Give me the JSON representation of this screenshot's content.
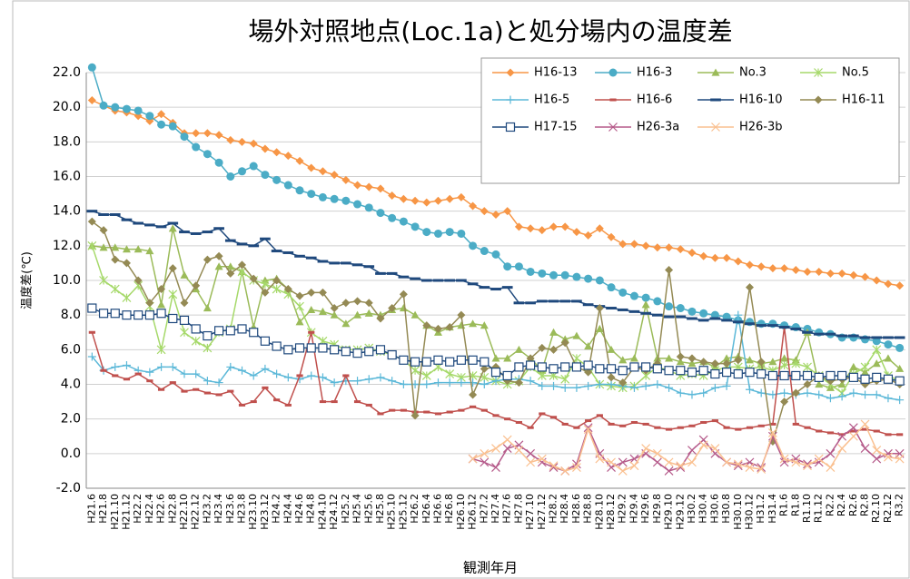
{
  "chart_data": {
    "type": "line",
    "title": "場外対照地点(Loc.1a)と処分場内の温度差",
    "y_label": "温度差(℃)",
    "x_label": "観測年月",
    "categories": [
      "H21.6",
      "H21.8",
      "H21.10",
      "H21.12",
      "H22.2",
      "H22.4",
      "H22.6",
      "H22.8",
      "H22.10",
      "H22.12",
      "H23.2",
      "H23.4",
      "H23.6",
      "H23.8",
      "H23.10",
      "H23.12",
      "H24.2",
      "H24.4",
      "H24.6",
      "H24.8",
      "H24.10",
      "H24.12",
      "H25.2",
      "H25.4",
      "H25.6",
      "H25.8",
      "H25.10",
      "H25.12",
      "H26.2",
      "H26.4",
      "H26.6",
      "H26.8",
      "H26.10",
      "H26.12",
      "H27.2",
      "H27.4",
      "H27.6",
      "H27.8",
      "H27.10",
      "H27.12",
      "H28.2",
      "H28.4",
      "H28.6",
      "H28.8",
      "H28.10",
      "H28.12",
      "H29.2",
      "H29.4",
      "H29.6",
      "H29.8",
      "H29.10",
      "H29.12",
      "H30.2",
      "H30.4",
      "H30.6",
      "H30.8",
      "H30.10",
      "H30.12",
      "H31.2",
      "H31.4",
      "R1.6",
      "R1.8",
      "R1.10",
      "R1.12",
      "R2.2",
      "R2.4",
      "R2.6",
      "R2.8",
      "R2.10",
      "R2.12",
      "R3.2"
    ],
    "ylim": [
      -2,
      22
    ],
    "yticks": [
      {
        "value": -2,
        "label": "-2.0"
      },
      {
        "value": 0,
        "label": "0.0"
      },
      {
        "value": 2,
        "label": "2.0"
      },
      {
        "value": 4,
        "label": "4.0"
      },
      {
        "value": 6,
        "label": "6.0"
      },
      {
        "value": 8,
        "label": "8.0"
      },
      {
        "value": 10,
        "label": "10.0"
      },
      {
        "value": 12,
        "label": "12.0"
      },
      {
        "value": 14,
        "label": "14.0"
      },
      {
        "value": 16,
        "label": "16.0"
      },
      {
        "value": 18,
        "label": "18.0"
      },
      {
        "value": 20,
        "label": "20.0"
      },
      {
        "value": 22,
        "label": "22.0"
      }
    ],
    "grid": true,
    "legend": "top-right",
    "series": [
      {
        "name": "H16-13",
        "color": "#f79646",
        "marker": "diamond",
        "values": [
          20.4,
          20.1,
          19.8,
          19.7,
          19.5,
          19.2,
          19.6,
          19.1,
          18.5,
          18.5,
          18.5,
          18.4,
          18.1,
          18.0,
          17.9,
          17.6,
          17.4,
          17.2,
          16.9,
          16.5,
          16.3,
          16.1,
          15.8,
          15.5,
          15.4,
          15.3,
          14.9,
          14.7,
          14.6,
          14.5,
          14.6,
          14.7,
          14.8,
          14.3,
          14.0,
          13.8,
          14.0,
          13.1,
          13.0,
          12.9,
          13.1,
          13.1,
          12.8,
          12.6,
          13.0,
          12.5,
          12.1,
          12.1,
          12.0,
          11.9,
          11.9,
          11.8,
          11.6,
          11.4,
          11.3,
          11.3,
          11.1,
          10.9,
          10.8,
          10.7,
          10.7,
          10.6,
          10.5,
          10.5,
          10.4,
          10.4,
          10.3,
          10.2,
          10.0,
          9.8,
          9.7
        ]
      },
      {
        "name": "H16-3",
        "color": "#4bacc6",
        "marker": "circle",
        "values": [
          22.3,
          20.1,
          20.0,
          19.9,
          19.8,
          19.5,
          19.0,
          18.9,
          18.3,
          17.7,
          17.3,
          16.8,
          16.0,
          16.3,
          16.6,
          16.1,
          15.8,
          15.5,
          15.2,
          15.0,
          14.8,
          14.7,
          14.6,
          14.4,
          14.2,
          13.9,
          13.6,
          13.4,
          13.1,
          12.8,
          12.7,
          12.8,
          12.7,
          12.0,
          11.7,
          11.5,
          10.8,
          10.8,
          10.5,
          10.4,
          10.3,
          10.3,
          10.2,
          10.1,
          10.0,
          9.6,
          9.3,
          9.1,
          9.0,
          8.8,
          8.5,
          8.4,
          8.2,
          8.1,
          8.0,
          7.9,
          7.7,
          7.6,
          7.5,
          7.5,
          7.4,
          7.3,
          7.2,
          7.0,
          6.9,
          6.7,
          6.7,
          6.6,
          6.5,
          6.3,
          6.1
        ]
      },
      {
        "name": "No.3",
        "color": "#9bbb59",
        "marker": "triangle",
        "values": [
          12.0,
          11.9,
          11.9,
          11.8,
          11.8,
          11.7,
          8.6,
          13.0,
          10.3,
          9.5,
          8.4,
          10.8,
          10.8,
          10.5,
          7.3,
          10.0,
          10.1,
          9.5,
          7.6,
          8.3,
          8.2,
          8.0,
          7.5,
          8.0,
          8.1,
          8.0,
          8.3,
          8.4,
          8.0,
          7.4,
          7.0,
          7.3,
          7.4,
          7.5,
          7.4,
          5.5,
          5.5,
          6.0,
          5.5,
          4.8,
          7.0,
          6.6,
          6.8,
          6.2,
          7.2,
          6.0,
          5.4,
          5.5,
          8.6,
          5.5,
          5.5,
          5.3,
          5.2,
          5.3,
          5.0,
          5.5,
          5.6,
          5.4,
          5.2,
          5.3,
          5.5,
          5.4,
          7.0,
          4.0,
          3.8,
          4.0,
          5.0,
          4.7,
          5.2,
          5.5,
          4.9
        ]
      },
      {
        "name": "No.5",
        "color": "#a6d96a",
        "marker": "star",
        "values": [
          12.0,
          10.0,
          9.5,
          9.0,
          9.7,
          8.5,
          6.0,
          9.2,
          7.0,
          6.5,
          6.1,
          7.0,
          7.2,
          10.5,
          10.0,
          9.8,
          9.5,
          9.2,
          8.5,
          7.0,
          6.5,
          6.3,
          6.0,
          6.0,
          6.1,
          5.9,
          5.7,
          5.4,
          4.8,
          4.5,
          5.0,
          4.6,
          4.4,
          4.5,
          4.4,
          4.2,
          4.0,
          4.2,
          5.0,
          4.5,
          4.5,
          4.3,
          5.5,
          5.0,
          4.0,
          3.9,
          3.8,
          3.9,
          4.5,
          5.0,
          4.8,
          4.5,
          4.6,
          4.5,
          4.8,
          5.0,
          5.0,
          4.9,
          5.0,
          4.8,
          5.1,
          5.2,
          5.0,
          4.5,
          4.0,
          3.5,
          4.6,
          5.0,
          6.0,
          4.5,
          4.2
        ]
      },
      {
        "name": "H16-5",
        "color": "#5bb8d8",
        "marker": "plus",
        "values": [
          5.6,
          4.8,
          5.0,
          5.1,
          4.8,
          4.7,
          5.0,
          5.0,
          4.6,
          4.6,
          4.2,
          4.1,
          5.0,
          4.8,
          4.5,
          4.9,
          4.6,
          4.4,
          4.3,
          4.5,
          4.4,
          4.1,
          4.2,
          4.2,
          4.3,
          4.4,
          4.2,
          4.0,
          4.0,
          4.0,
          4.1,
          4.1,
          4.1,
          4.1,
          4.0,
          4.2,
          4.3,
          4.3,
          4.2,
          3.9,
          3.9,
          3.8,
          3.8,
          3.9,
          4.0,
          4.0,
          3.9,
          3.8,
          3.9,
          4.0,
          3.8,
          3.5,
          3.4,
          3.5,
          3.8,
          3.9,
          8.0,
          3.7,
          3.5,
          3.4,
          3.5,
          3.4,
          3.5,
          3.4,
          3.2,
          3.3,
          3.5,
          3.4,
          3.4,
          3.2,
          3.1
        ]
      },
      {
        "name": "H16-6",
        "color": "#c0504d",
        "marker": "dash",
        "values": [
          7.0,
          4.8,
          4.5,
          4.3,
          4.6,
          4.2,
          3.7,
          4.1,
          3.6,
          3.7,
          3.5,
          3.4,
          3.6,
          2.8,
          3.0,
          3.8,
          3.1,
          2.8,
          4.5,
          7.0,
          3.0,
          3.0,
          4.5,
          3.0,
          2.8,
          2.3,
          2.5,
          2.5,
          2.4,
          2.4,
          2.3,
          2.4,
          2.5,
          2.7,
          2.5,
          2.2,
          2.0,
          1.8,
          1.5,
          2.3,
          2.1,
          1.7,
          1.5,
          1.9,
          2.2,
          1.7,
          1.6,
          1.8,
          1.7,
          1.5,
          1.4,
          1.5,
          1.6,
          1.8,
          1.9,
          1.5,
          1.4,
          1.5,
          1.6,
          1.7,
          7.3,
          1.7,
          1.5,
          1.3,
          1.2,
          1.1,
          1.3,
          1.4,
          1.3,
          1.1,
          1.1
        ]
      },
      {
        "name": "H16-10",
        "color": "#1f497d",
        "marker": "longdash",
        "values": [
          14.0,
          13.8,
          13.8,
          13.5,
          13.3,
          13.2,
          13.1,
          13.3,
          12.8,
          12.7,
          12.8,
          13.0,
          12.3,
          12.1,
          12.0,
          12.4,
          11.7,
          11.6,
          11.4,
          11.3,
          11.1,
          11.0,
          11.0,
          10.9,
          10.8,
          10.4,
          10.4,
          10.2,
          10.1,
          10.0,
          10.0,
          10.0,
          10.0,
          9.8,
          9.6,
          9.5,
          9.6,
          8.7,
          8.7,
          8.8,
          8.8,
          8.8,
          8.8,
          8.6,
          8.5,
          8.4,
          8.3,
          8.2,
          8.1,
          8.0,
          7.9,
          7.9,
          7.8,
          7.7,
          7.8,
          7.7,
          7.6,
          7.5,
          7.4,
          7.4,
          7.3,
          7.2,
          7.0,
          6.9,
          6.9,
          6.8,
          6.8,
          6.7,
          6.7,
          6.7,
          6.7
        ]
      },
      {
        "name": "H16-11",
        "color": "#948a54",
        "marker": "diamond",
        "values": [
          13.4,
          12.9,
          11.2,
          11.0,
          10.0,
          8.7,
          9.5,
          10.7,
          8.7,
          9.7,
          11.2,
          11.4,
          10.4,
          10.9,
          10.1,
          9.3,
          10.0,
          9.5,
          9.1,
          9.3,
          9.3,
          8.4,
          8.7,
          8.8,
          8.7,
          7.8,
          8.4,
          9.2,
          2.2,
          7.4,
          7.2,
          7.3,
          8.0,
          3.4,
          4.9,
          5.0,
          4.2,
          4.1,
          5.5,
          6.1,
          6.0,
          6.4,
          5.0,
          4.7,
          8.4,
          4.4,
          4.1,
          5.0,
          4.8,
          5.2,
          10.6,
          5.6,
          5.5,
          5.3,
          5.2,
          5.2,
          5.4,
          9.6,
          5.3,
          0.7,
          3.0,
          3.5,
          4.0,
          4.5,
          4.2,
          4.3,
          4.4,
          4.0,
          4.2,
          4.3,
          4.0
        ]
      },
      {
        "name": "H17-15",
        "color": "#1f497d",
        "marker": "square",
        "values": [
          8.4,
          8.1,
          8.1,
          8.0,
          8.0,
          8.0,
          8.1,
          7.8,
          7.7,
          7.2,
          6.8,
          7.1,
          7.1,
          7.2,
          7.0,
          6.5,
          6.2,
          6.0,
          6.1,
          6.1,
          6.1,
          6.0,
          5.9,
          5.8,
          5.9,
          6.0,
          5.7,
          5.4,
          5.3,
          5.3,
          5.4,
          5.3,
          5.4,
          5.4,
          5.3,
          4.7,
          4.5,
          5.0,
          5.1,
          5.0,
          4.9,
          5.0,
          5.0,
          5.1,
          4.9,
          4.9,
          4.8,
          5.0,
          5.0,
          4.9,
          4.8,
          4.8,
          4.7,
          4.8,
          4.6,
          4.7,
          4.6,
          4.7,
          4.6,
          4.5,
          4.5,
          4.5,
          4.5,
          4.4,
          4.5,
          4.5,
          4.4,
          4.3,
          4.4,
          4.3,
          4.2
        ]
      },
      {
        "name": "H26-3a",
        "color": "#b55a8a",
        "marker": "cross",
        "values": [
          null,
          null,
          null,
          null,
          null,
          null,
          null,
          null,
          null,
          null,
          null,
          null,
          null,
          null,
          null,
          null,
          null,
          null,
          null,
          null,
          null,
          null,
          null,
          null,
          null,
          null,
          null,
          null,
          null,
          null,
          null,
          null,
          null,
          -0.3,
          -0.5,
          -0.8,
          0.3,
          0.5,
          0.0,
          -0.5,
          -0.8,
          -1.0,
          -0.6,
          1.5,
          0.0,
          -0.8,
          -0.5,
          -0.3,
          0.0,
          -0.5,
          -1.0,
          -0.8,
          0.2,
          0.8,
          0.0,
          -0.5,
          -0.7,
          -0.5,
          -0.8,
          1.0,
          -0.5,
          -0.3,
          -0.6,
          -0.5,
          0.0,
          1.0,
          1.5,
          0.3,
          -0.3,
          0.0,
          0.0
        ]
      },
      {
        "name": "H26-3b",
        "color": "#fac090",
        "marker": "cross",
        "values": [
          null,
          null,
          null,
          null,
          null,
          null,
          null,
          null,
          null,
          null,
          null,
          null,
          null,
          null,
          null,
          null,
          null,
          null,
          null,
          null,
          null,
          null,
          null,
          null,
          null,
          null,
          null,
          null,
          null,
          null,
          null,
          null,
          null,
          -0.3,
          0.0,
          0.3,
          0.8,
          0.2,
          -0.5,
          -0.3,
          -0.7,
          -1.0,
          -0.8,
          1.4,
          -0.3,
          -0.5,
          -1.0,
          -0.7,
          0.3,
          0.0,
          -0.5,
          -0.7,
          -0.5,
          0.5,
          0.3,
          -0.5,
          -0.6,
          -0.8,
          -0.9,
          1.2,
          -0.3,
          -0.5,
          -0.7,
          -0.3,
          -0.8,
          0.3,
          1.0,
          1.7,
          0.2,
          -0.2,
          -0.3
        ]
      }
    ]
  }
}
